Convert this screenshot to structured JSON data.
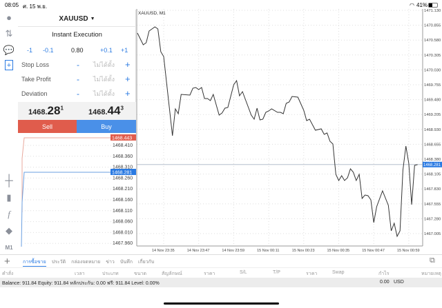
{
  "status": {
    "time": "08:05",
    "date": "ศ. 15 พ.ย.",
    "battery": "41%"
  },
  "sidebar_icons": [
    "account-icon",
    "trade-icon",
    "chat-icon",
    "new-order-icon",
    "crosshair-icon",
    "candles-icon",
    "indicator-f-icon",
    "objects-icon"
  ],
  "sidebar_timeframe": "M1",
  "order": {
    "symbol": "XAUUSD",
    "mode": "Instant Execution",
    "volume": {
      "dec1": "-1",
      "dec01": "-0.1",
      "value": "0.80",
      "inc01": "+0.1",
      "inc1": "+1"
    },
    "fields": [
      {
        "label": "Stop Loss",
        "placeholder": "ไม่ได้ตั้ง"
      },
      {
        "label": "Take Profit",
        "placeholder": "ไม่ได้ตั้ง"
      },
      {
        "label": "Deviation",
        "placeholder": "ไม่ได้ตั้ง"
      }
    ],
    "minus": "-",
    "plus": "+",
    "bid": {
      "main": "1468.",
      "big": "28",
      "sup": "1"
    },
    "ask": {
      "main": "1468.",
      "big": "44",
      "sup": "3"
    },
    "sell_label": "Sell",
    "buy_label": "Buy"
  },
  "depth": {
    "ask": "1468.443",
    "bid": "1468.281",
    "levels": [
      "1468.410",
      "1468.360",
      "1468.310",
      "1468.260",
      "1468.210",
      "1468.160",
      "1468.110",
      "1468.060",
      "1468.010",
      "1467.960"
    ]
  },
  "chart_data": {
    "type": "line",
    "title": "XAUUSD, M1",
    "current_price": "1468.281",
    "price_line_value": 1468.281,
    "ylim": [
      1466.93,
      1471.13
    ],
    "y_ticks": [
      "1471.130",
      "1470.855",
      "1470.580",
      "1470.305",
      "1470.030",
      "1469.755",
      "1469.480",
      "1469.205",
      "1468.930",
      "1468.655",
      "1468.380",
      "1468.105",
      "1467.830",
      "1467.555",
      "1467.280",
      "1467.005"
    ],
    "x_ticks": [
      "14 Nov 23:35",
      "14 Nov 23:47",
      "14 Nov 23:59",
      "15 Nov 00:11",
      "15 Nov 00:23",
      "15 Nov 00:35",
      "15 Nov 00:47",
      "15 Nov 00:59"
    ],
    "grid": true,
    "line_color": "#333333",
    "x": [
      "23:26",
      "23:28",
      "23:29",
      "23:30",
      "23:32",
      "23:33",
      "23:34",
      "23:35",
      "23:38",
      "23:39",
      "23:40",
      "23:41",
      "23:44",
      "23:45",
      "23:46",
      "23:47",
      "23:48",
      "23:49",
      "23:50",
      "23:51",
      "23:52",
      "23:54",
      "23:55",
      "23:56",
      "23:57",
      "23:59",
      "00:00",
      "00:01",
      "00:02",
      "00:05",
      "00:06",
      "00:07",
      "00:08",
      "00:09",
      "00:10",
      "00:11",
      "00:12",
      "00:14",
      "00:15",
      "00:16",
      "00:17",
      "00:18",
      "00:19",
      "00:21",
      "00:23",
      "00:24",
      "00:25",
      "00:27",
      "00:29",
      "00:30",
      "00:31",
      "00:32",
      "00:33",
      "00:34",
      "00:35",
      "00:36",
      "00:37",
      "00:38",
      "00:39",
      "00:40",
      "00:41",
      "00:42",
      "00:43",
      "00:44",
      "00:45",
      "00:46",
      "00:47",
      "00:48",
      "00:50",
      "00:52",
      "00:53",
      "00:54",
      "00:55",
      "00:56",
      "00:57",
      "00:58",
      "00:59",
      "01:00",
      "01:01",
      "01:02"
    ],
    "values": [
      1470.71,
      1470.494,
      1470.532,
      1470.748,
      1470.824,
      1470.786,
      1470.366,
      1470.277,
      1468.813,
      1469.31,
      1469.22,
      1469.577,
      1469.564,
      1469.691,
      1469.704,
      1469.666,
      1469.704,
      1469.5,
      1469.5,
      1469.462,
      1469.577,
      1469.195,
      1469.233,
      1469.322,
      1469.335,
      1469.755,
      1469.831,
      1469.551,
      1469.628,
      1469.195,
      1469.119,
      1469.322,
      1469.106,
      1469.119,
      1469.246,
      1469.271,
      1469.31,
      1469.246,
      1469.246,
      1469.22,
      1469.411,
      1469.437,
      1469.539,
      1469.526,
      1469.284,
      1469.093,
      1469.119,
      1468.915,
      1468.94,
      1468.838,
      1468.864,
      1468.711,
      1468.66,
      1468.1,
      1467.986,
      1468.075,
      1467.986,
      1468.037,
      1468.202,
      1468.138,
      1467.986,
      1468.1,
      1467.655,
      1467.718,
      1467.706,
      1467.629,
      1467.209,
      1467.502,
      1467.795,
      1467.527,
      1467.056,
      1467.196,
      1466.954,
      1467.056,
      1468.176,
      1468.622,
      1468.304,
      1467.54,
      1468.266,
      1468.279
    ]
  },
  "tabs": [
    {
      "label": "การซื้อขาย",
      "active": true
    },
    {
      "label": "ประวัติ"
    },
    {
      "label": "กล่องจดหมาย"
    },
    {
      "label": "ข่าว"
    },
    {
      "label": "บันทึก"
    },
    {
      "label": "เกี่ยวกับ"
    }
  ],
  "columns": [
    "คำสั่ง",
    "เวลา",
    "ประเภท",
    "ขนาด",
    "สัญลักษณ์",
    "ราคา",
    "S/L",
    "T/P",
    "ราคา",
    "Swap",
    "กำไร",
    "หมายเหตุ"
  ],
  "balance": {
    "text": "Balance: 911.84 Equity: 911.84 หลักประกัน: 0.00 ฟรี: 911.84 Level: 0.00%",
    "profit": "0.00",
    "currency": "USD"
  }
}
